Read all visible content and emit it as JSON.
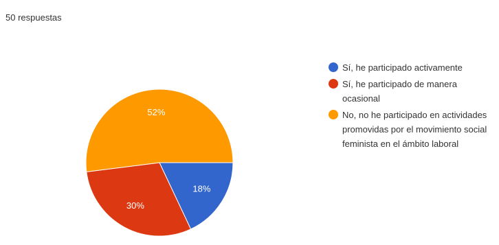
{
  "chart_data": {
    "type": "pie",
    "subtitle": "50 respuestas",
    "categories": [
      "Sí, he participado activamente",
      "Sí, he participado de manera ocasional",
      "No, no he participado en actividades promovidas por el movimiento social feminista en el ámbito laboral"
    ],
    "values": [
      18,
      30,
      52
    ],
    "value_labels": [
      "18%",
      "30%",
      "52%"
    ],
    "colors": [
      "#3366cc",
      "#dc3912",
      "#ff9900"
    ]
  }
}
